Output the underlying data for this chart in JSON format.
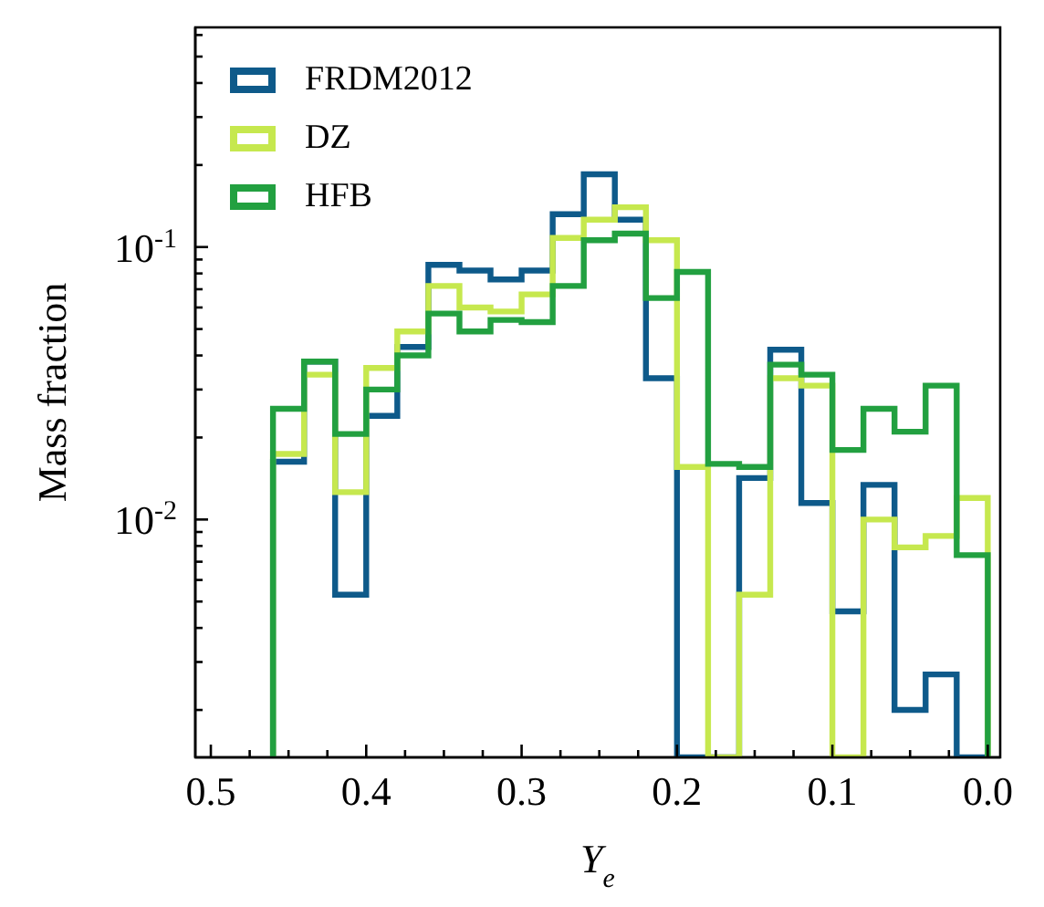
{
  "chart_data": {
    "type": "histogram",
    "xlabel": "Y$_{e}$",
    "ylabel": "Mass fraction",
    "log": "y",
    "legend": "top left",
    "grid": false,
    "bins": [
      0.46,
      0.44,
      0.42,
      0.4,
      0.38,
      0.36,
      0.34,
      0.32,
      0.3,
      0.28,
      0.26,
      0.24,
      0.22,
      0.2,
      0.18,
      0.16,
      0.14,
      0.12,
      0.1,
      0.08,
      0.06,
      0.04,
      0.02,
      0.0
    ],
    "xlim": [
      0.51,
      -0.008
    ],
    "ylim": [
      0.00134,
      0.64
    ],
    "xticks": [
      0.5,
      {
        "value": 0.475,
        "label": null
      },
      {
        "value": 0.45,
        "label": null
      },
      {
        "value": 0.425,
        "label": null
      },
      0.4,
      {
        "value": 0.375,
        "label": null
      },
      {
        "value": 0.35,
        "label": null
      },
      {
        "value": 0.325,
        "label": null
      },
      0.3,
      {
        "value": 0.275,
        "label": null
      },
      {
        "value": 0.25,
        "label": null
      },
      {
        "value": 0.225,
        "label": null
      },
      0.2,
      {
        "value": 0.175,
        "label": null
      },
      {
        "value": 0.15,
        "label": null
      },
      {
        "value": 0.125,
        "label": null
      },
      0.1,
      {
        "value": 0.075,
        "label": null
      },
      {
        "value": 0.05,
        "label": null
      },
      {
        "value": 0.025,
        "label": null
      },
      {
        "value": 0,
        "label": "0.0"
      }
    ],
    "yticks": [
      {
        "value": 0.002,
        "label": null
      },
      {
        "value": 0.003,
        "label": null
      },
      {
        "value": 0.004,
        "label": null
      },
      {
        "value": 0.005,
        "label": null
      },
      {
        "value": 0.006,
        "label": null
      },
      {
        "value": 0.007,
        "label": null
      },
      {
        "value": 0.008,
        "label": null
      },
      {
        "value": 0.009,
        "label": null
      },
      {
        "value": 0.01,
        "label": "10$^{-2}$"
      },
      {
        "value": 0.02,
        "label": null
      },
      {
        "value": 0.03,
        "label": null
      },
      {
        "value": 0.04,
        "label": null
      },
      {
        "value": 0.05,
        "label": null
      },
      {
        "value": 0.06,
        "label": null
      },
      {
        "value": 0.07,
        "label": null
      },
      {
        "value": 0.08,
        "label": null
      },
      {
        "value": 0.09,
        "label": null
      },
      {
        "value": 0.1,
        "label": "10$^{-1}$"
      },
      {
        "value": 0.2,
        "label": null
      },
      {
        "value": 0.3,
        "label": null
      },
      {
        "value": 0.4,
        "label": null
      },
      {
        "value": 0.5,
        "label": null
      },
      {
        "value": 0.6,
        "label": null
      }
    ],
    "series": [
      {
        "name": "FRDM2012",
        "color": "#0e5a8a",
        "values": [
          0.0163,
          0.038,
          0.0053,
          0.024,
          0.043,
          0.086,
          0.082,
          0.076,
          0.082,
          0.132,
          0.185,
          0.126,
          0.033,
          null,
          null,
          0.0142,
          0.042,
          0.0115,
          0.0046,
          0.0134,
          0.002,
          0.0027,
          null
        ]
      },
      {
        "name": "DZ",
        "color": "#c6e84e",
        "values": [
          0.0174,
          0.034,
          0.0126,
          0.036,
          0.049,
          0.072,
          0.06,
          0.058,
          0.067,
          0.108,
          0.126,
          0.14,
          0.106,
          0.0156,
          null,
          0.0053,
          0.033,
          0.031,
          null,
          0.01,
          0.0079,
          0.0087,
          0.012
        ]
      },
      {
        "name": "HFB",
        "color": "#22a040",
        "values": [
          0.0255,
          0.038,
          0.0206,
          0.03,
          0.04,
          0.057,
          0.049,
          0.054,
          0.053,
          0.072,
          0.106,
          0.112,
          0.065,
          0.081,
          0.016,
          0.0156,
          0.037,
          0.034,
          0.018,
          0.0255,
          0.021,
          0.031,
          0.0074
        ]
      }
    ]
  }
}
